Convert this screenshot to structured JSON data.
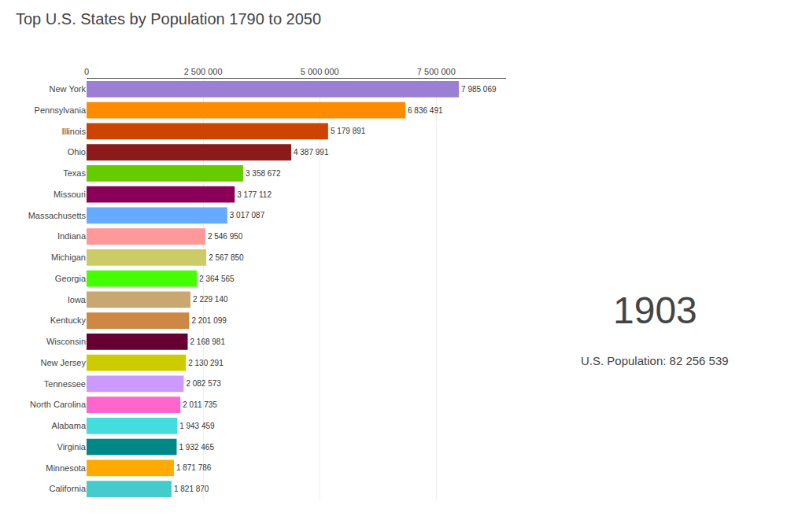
{
  "chart_data": {
    "type": "bar",
    "orientation": "horizontal",
    "title": "Top U.S. States by Population 1790 to 2050",
    "categories": [
      "New York",
      "Pennsylvania",
      "Illinois",
      "Ohio",
      "Texas",
      "Missouri",
      "Massachusetts",
      "Indiana",
      "Michigan",
      "Georgia",
      "Iowa",
      "Kentucky",
      "Wisconsin",
      "New Jersey",
      "Tennessee",
      "North Carolina",
      "Alabama",
      "Virginia",
      "Minnesota",
      "California"
    ],
    "values": [
      7985069,
      6836491,
      5179891,
      4387991,
      3358672,
      3177112,
      3017087,
      2546950,
      2567850,
      2364565,
      2229140,
      2201099,
      2168981,
      2130291,
      2082573,
      2011735,
      1943459,
      1932465,
      1871786,
      1821870
    ],
    "value_labels": [
      "7 985 069",
      "6 836 491",
      "5 179 891",
      "4 387 991",
      "3 358 672",
      "3 177 112",
      "3 017 087",
      "2 546 950",
      "2 567 850",
      "2 364 565",
      "2 229 140",
      "2 201 099",
      "2 168 981",
      "2 130 291",
      "2 082 573",
      "2 011 735",
      "1 943 459",
      "1 932 465",
      "1 871 786",
      "1 821 870"
    ],
    "colors": [
      "#9b7fd4",
      "#ff8c00",
      "#cc4400",
      "#8b1a1a",
      "#66cc00",
      "#8b0057",
      "#66aaff",
      "#ff9999",
      "#cccc66",
      "#44ff00",
      "#c8a870",
      "#cc8844",
      "#660033",
      "#cccc00",
      "#cc99ff",
      "#ff66cc",
      "#44dddd",
      "#008888",
      "#ffaa00",
      "#44cccc"
    ],
    "xlim": [
      0,
      9000000
    ],
    "xticks": [
      0,
      {
        "value": 2500000,
        "label": "2 500 000"
      },
      {
        "value": 5000000,
        "label": "5 000 000"
      },
      {
        "value": 7500000,
        "label": "7 500 000"
      }
    ],
    "grid": true,
    "data_labels": true,
    "annotations": [
      "1903",
      "U.S. Population: 82 256 539"
    ]
  }
}
